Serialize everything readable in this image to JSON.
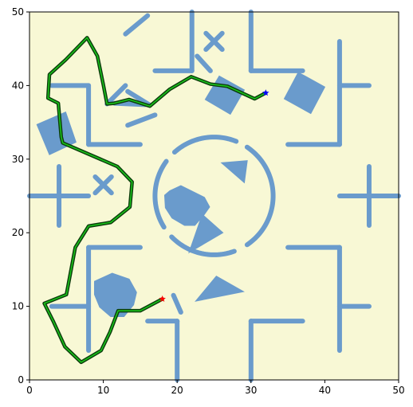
{
  "chart_data": {
    "type": "line",
    "xlim": [
      0,
      50
    ],
    "ylim": [
      0,
      50
    ],
    "x_ticks": [
      "0",
      "10",
      "20",
      "30",
      "40",
      "50"
    ],
    "y_ticks": [
      "0",
      "10",
      "20",
      "30",
      "40",
      "50"
    ],
    "grid": false,
    "colors": {
      "background": "#f8f8d5",
      "obstacle": "#6a9bcc",
      "path_outer": "#0c3d0c",
      "path_inner": "#19c319",
      "start": "#ff0000",
      "goal": "#0000ff"
    },
    "start": [
      18,
      11
    ],
    "goal": [
      32,
      39
    ],
    "path": [
      [
        18,
        11
      ],
      [
        15,
        9.4
      ],
      [
        12,
        9.4
      ],
      [
        10.9,
        6.5
      ],
      [
        9.7,
        4
      ],
      [
        7,
        2.4
      ],
      [
        4.8,
        4.5
      ],
      [
        3.2,
        8
      ],
      [
        2,
        10.4
      ],
      [
        5,
        11.6
      ],
      [
        6.2,
        18
      ],
      [
        8,
        20.9
      ],
      [
        11,
        21.4
      ],
      [
        13.6,
        23.5
      ],
      [
        13.9,
        26.9
      ],
      [
        11.9,
        29
      ],
      [
        4.5,
        32.2
      ],
      [
        4.3,
        33
      ],
      [
        3.9,
        37.6
      ],
      [
        2.5,
        38.3
      ],
      [
        2.7,
        41.5
      ],
      [
        4.9,
        43.5
      ],
      [
        7.8,
        46.5
      ],
      [
        9.2,
        44
      ],
      [
        10,
        40.1
      ],
      [
        10.5,
        37.5
      ],
      [
        11.5,
        37.6
      ],
      [
        13.5,
        38.1
      ],
      [
        16.3,
        37.2
      ],
      [
        19,
        39.5
      ],
      [
        21.9,
        41.2
      ],
      [
        24.5,
        40.2
      ],
      [
        26.8,
        39.9
      ],
      [
        30.5,
        38.2
      ],
      [
        32,
        39
      ]
    ],
    "obstacles": {
      "walls": [
        [
          [
            17,
            42
          ],
          [
            22,
            42
          ]
        ],
        [
          [
            22,
            42
          ],
          [
            22,
            50
          ]
        ],
        [
          [
            30,
            50
          ],
          [
            30,
            42
          ]
        ],
        [
          [
            30,
            42
          ],
          [
            37,
            42
          ]
        ],
        [
          [
            8,
            32
          ],
          [
            15,
            32
          ]
        ],
        [
          [
            8,
            32
          ],
          [
            8,
            40
          ]
        ],
        [
          [
            3,
            40
          ],
          [
            8,
            40
          ]
        ],
        [
          [
            42,
            46
          ],
          [
            42,
            32
          ]
        ],
        [
          [
            42,
            40
          ],
          [
            46,
            40
          ]
        ],
        [
          [
            35,
            32
          ],
          [
            42,
            32
          ]
        ],
        [
          [
            8,
            18
          ],
          [
            15,
            18
          ]
        ],
        [
          [
            8,
            18
          ],
          [
            8,
            4
          ]
        ],
        [
          [
            3,
            10
          ],
          [
            8,
            10
          ]
        ],
        [
          [
            42,
            18
          ],
          [
            35,
            18
          ]
        ],
        [
          [
            42,
            18
          ],
          [
            42,
            4
          ]
        ],
        [
          [
            42,
            10
          ],
          [
            46,
            10
          ]
        ],
        [
          [
            16,
            8
          ],
          [
            20,
            8
          ]
        ],
        [
          [
            20,
            8
          ],
          [
            20,
            0
          ]
        ],
        [
          [
            30,
            0
          ],
          [
            30,
            8
          ]
        ],
        [
          [
            30,
            8
          ],
          [
            37,
            8
          ]
        ],
        [
          [
            0,
            25
          ],
          [
            8,
            25
          ]
        ],
        [
          [
            4,
            29
          ],
          [
            4,
            21
          ]
        ],
        [
          [
            42,
            25
          ],
          [
            50,
            25
          ]
        ],
        [
          [
            46,
            29
          ],
          [
            46,
            21
          ]
        ],
        [
          [
            13,
            47
          ],
          [
            16,
            49.5
          ]
        ],
        [
          [
            22.7,
            44
          ],
          [
            24.5,
            42
          ]
        ],
        [
          [
            10.5,
            37.5
          ],
          [
            13,
            40
          ]
        ],
        [
          [
            13.3,
            34.6
          ],
          [
            17,
            36
          ]
        ],
        [
          [
            11.5,
            37.6
          ],
          [
            15.7,
            37.4
          ]
        ],
        [
          [
            16.2,
            37.4
          ],
          [
            13.3,
            39.2
          ]
        ],
        [
          [
            19.5,
            11.5
          ],
          [
            20.5,
            9.2
          ]
        ]
      ],
      "crosses": [
        [
          25,
          46
        ],
        [
          10,
          26.5
        ]
      ],
      "polygons": [
        [
          [
            23.8,
            38.1
          ],
          [
            27.2,
            36.1
          ],
          [
            29.1,
            39.4
          ],
          [
            25.7,
            41.3
          ]
        ],
        [
          [
            34.5,
            38.2
          ],
          [
            38.1,
            36.2
          ],
          [
            40,
            39.8
          ],
          [
            36.4,
            41.8
          ]
        ],
        [
          [
            1,
            34.7
          ],
          [
            4.9,
            36.4
          ],
          [
            6.3,
            32.3
          ],
          [
            2.7,
            30.6
          ]
        ],
        [
          [
            23.7,
            24.8
          ],
          [
            20.5,
            26.4
          ],
          [
            19,
            25.7
          ],
          [
            18.3,
            25.1
          ],
          [
            18.4,
            23.4
          ],
          [
            19.3,
            22
          ],
          [
            21,
            21
          ],
          [
            22.4,
            21
          ],
          [
            23.7,
            22.5
          ],
          [
            24.4,
            23.5
          ]
        ],
        [
          [
            8.8,
            13.4
          ],
          [
            11.2,
            14.5
          ],
          [
            13.5,
            13.7
          ],
          [
            14.5,
            11.9
          ],
          [
            14.1,
            10.2
          ],
          [
            12.8,
            8.6
          ],
          [
            11,
            8.6
          ],
          [
            9.5,
            9.9
          ],
          [
            8.8,
            11.6
          ]
        ],
        [
          [
            26,
            29.5
          ],
          [
            29.5,
            29.8
          ],
          [
            29.1,
            26.8
          ]
        ],
        [
          [
            23.4,
            22.5
          ],
          [
            21.6,
            17.3
          ],
          [
            26.2,
            20
          ]
        ],
        [
          [
            25.3,
            14.1
          ],
          [
            29,
            12
          ],
          [
            22.5,
            10.7
          ]
        ]
      ],
      "ring": {
        "center": [
          25,
          25
        ],
        "radius": 8,
        "gaps_deg": [
          [
            56,
            68
          ],
          [
            132,
            144
          ],
          [
            212,
            224
          ],
          [
            290,
            304
          ]
        ]
      }
    }
  }
}
